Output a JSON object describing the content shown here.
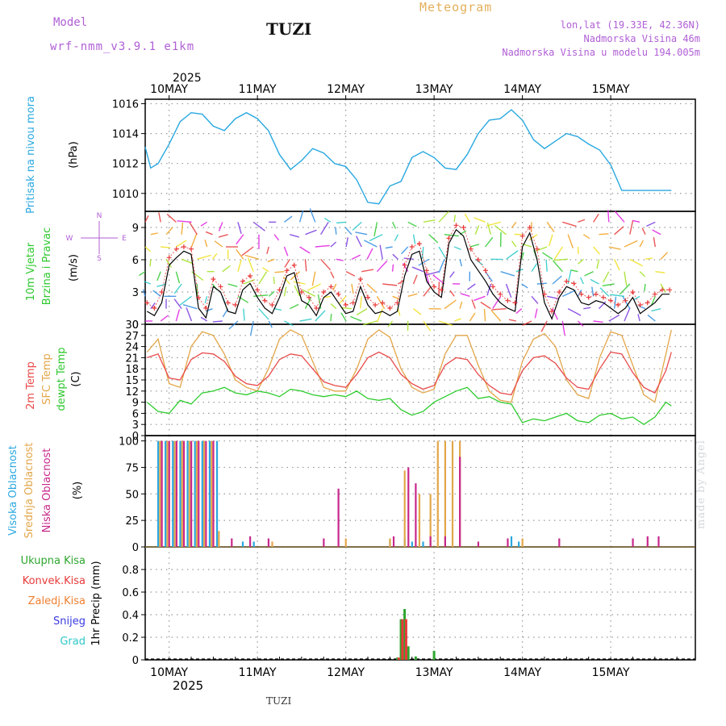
{
  "header": {
    "model_label": "Model",
    "model_name": "wrf-nmm_v3.9.1 e1km",
    "station": "TUZI",
    "title": "Meteogram",
    "lonlat": "lon,lat (19.33E, 42.36N)",
    "elevation": "Nadmorska Visina 46m",
    "elevation_model": "Nadmorska Visina u modelu 194.005m"
  },
  "footer": {
    "station": "TUZI",
    "watermark": "made by Angel"
  },
  "time_axis": {
    "year": "2025",
    "days": [
      "10MAY",
      "11MAY",
      "12MAY",
      "13MAY",
      "14MAY",
      "15MAY"
    ],
    "start_hour_offset": -6.5,
    "total_hours": 143
  },
  "colors": {
    "pressure": "#29a8e0",
    "wind_speed": "#000000",
    "wind_gust": "#e83a3a",
    "t2m": "#e84a4a",
    "tsfc": "#e3a64a",
    "dewpoint": "#2ecc2e",
    "cloud_high": "#29a8e0",
    "cloud_mid": "#e3a64a",
    "cloud_low": "#c8288c",
    "precip_total": "#2ea62e",
    "precip_conv": "#e83a3a",
    "precip_frozen": "#f08030",
    "snow": "#3a3ae0",
    "hail": "#2ec8c8",
    "label_purple": "#b05fd6"
  },
  "chart_data": [
    {
      "type": "line",
      "name": "pressure",
      "ylabel_title": "Pritisak na nivou mora",
      "ylabel_unit": "(hPa)",
      "ylim": [
        1008.8,
        1016.3
      ],
      "yticks": [
        "1010",
        "1012",
        "1014",
        "1016"
      ],
      "x_hours": [
        -6.5,
        -5,
        -3,
        0,
        3,
        6,
        9,
        12,
        15,
        18,
        21,
        24,
        27,
        30,
        33,
        36,
        39,
        42,
        45,
        48,
        51,
        54,
        57,
        60,
        63,
        66,
        69,
        72,
        75,
        78,
        81,
        84,
        87,
        90,
        93,
        96,
        99,
        102,
        105,
        108,
        111,
        114,
        117,
        120,
        123,
        126,
        129,
        132,
        135,
        136.5
      ],
      "values": [
        1013.1,
        1011.7,
        1012.0,
        1013.3,
        1014.8,
        1015.4,
        1015.3,
        1014.5,
        1014.2,
        1015.0,
        1015.4,
        1015.0,
        1014.2,
        1012.6,
        1011.6,
        1012.2,
        1013.0,
        1012.7,
        1012.0,
        1011.8,
        1010.9,
        1009.4,
        1009.3,
        1010.5,
        1010.8,
        1012.4,
        1012.8,
        1012.4,
        1011.7,
        1011.6,
        1012.6,
        1014.0,
        1014.9,
        1015.0,
        1015.6,
        1014.9,
        1013.6,
        1013.0,
        1013.5,
        1014.0,
        1013.8,
        1013.3,
        1012.9,
        1011.9,
        1010.2,
        1010.2,
        1010.2,
        1010.2,
        1010.2,
        1010.2
      ]
    },
    {
      "type": "line",
      "name": "wind",
      "ylabel_title_1": "10m Vjetar",
      "ylabel_title_2": "Brzina i Pravac",
      "ylabel_unit": "(m/s)",
      "compass": [
        "N",
        "S",
        "W",
        "E"
      ],
      "ylim": [
        0,
        10.5
      ],
      "yticks": [
        "0",
        "3",
        "6",
        "9"
      ],
      "x_hours": [
        -6,
        -4,
        -2,
        0,
        2,
        4,
        6,
        8,
        10,
        12,
        14,
        16,
        18,
        20,
        22,
        24,
        26,
        28,
        30,
        32,
        34,
        36,
        38,
        40,
        42,
        44,
        46,
        48,
        50,
        52,
        54,
        56,
        58,
        60,
        62,
        64,
        66,
        68,
        70,
        72,
        74,
        76,
        78,
        80,
        82,
        84,
        86,
        88,
        90,
        92,
        94,
        96,
        98,
        100,
        102,
        104,
        106,
        108,
        110,
        112,
        114,
        116,
        118,
        120,
        122,
        124,
        126,
        128,
        130,
        132,
        134,
        136
      ],
      "series": [
        {
          "values": [
            1.2,
            0.8,
            2.0,
            5.5,
            6.2,
            6.8,
            6.5,
            1.5,
            0.6,
            3.5,
            3.0,
            1.2,
            1.0,
            3.2,
            3.8,
            2.5,
            1.5,
            1.0,
            2.5,
            4.5,
            4.8,
            2.2,
            1.8,
            0.8,
            2.5,
            3.0,
            2.0,
            1.0,
            1.2,
            3.5,
            1.8,
            1.0,
            1.2,
            0.8,
            1.2,
            4.5,
            6.5,
            6.8,
            4.0,
            3.0,
            2.5,
            7.5,
            8.8,
            8.2,
            6.0,
            5.0,
            4.0,
            2.8,
            2.0,
            1.5,
            1.2,
            7.2,
            8.5,
            6.0,
            2.0,
            0.5,
            2.5,
            3.5,
            3.2,
            2.0,
            1.8,
            2.2,
            2.0,
            1.5,
            1.0,
            1.5,
            2.5,
            1.0,
            1.5,
            2.0,
            2.8,
            2.8
          ]
        },
        {
          "values": [
            2.0,
            1.5,
            3.0,
            6.2,
            7.0,
            7.2,
            7.0,
            2.5,
            1.5,
            4.2,
            3.5,
            2.0,
            1.8,
            4.0,
            4.5,
            3.2,
            2.2,
            1.8,
            3.2,
            5.0,
            5.5,
            3.0,
            2.5,
            1.5,
            3.0,
            3.5,
            2.8,
            1.8,
            2.0,
            4.2,
            2.5,
            1.8,
            2.0,
            1.5,
            2.0,
            5.5,
            7.2,
            7.5,
            5.0,
            3.5,
            3.2,
            8.0,
            9.2,
            9.0,
            7.0,
            6.0,
            5.0,
            3.5,
            2.8,
            2.2,
            2.0,
            8.2,
            9.0,
            7.0,
            2.8,
            1.2,
            3.0,
            4.0,
            3.8,
            2.8,
            2.5,
            2.8,
            2.5,
            2.2,
            1.8,
            2.2,
            3.0,
            1.8,
            2.0,
            2.8,
            3.2,
            3.2
          ]
        }
      ]
    },
    {
      "type": "line",
      "name": "temperature",
      "legend": [
        "2m Temp",
        "SFC Temp",
        "dewpt Temp"
      ],
      "ylabel_unit": "(C)",
      "ylim": [
        0,
        30
      ],
      "yticks": [
        "0",
        "3",
        "6",
        "9",
        "12",
        "15",
        "18",
        "21",
        "24",
        "27",
        "30"
      ],
      "x_hours": [
        -6,
        -3,
        0,
        3,
        6,
        9,
        12,
        15,
        18,
        21,
        24,
        27,
        30,
        33,
        36,
        39,
        42,
        45,
        48,
        51,
        54,
        57,
        60,
        63,
        66,
        69,
        72,
        75,
        78,
        81,
        84,
        87,
        90,
        93,
        96,
        99,
        102,
        105,
        108,
        111,
        114,
        117,
        120,
        123,
        126,
        129,
        132,
        135,
        136.5
      ],
      "series": [
        {
          "values": [
            21.0,
            22.0,
            15.5,
            15.0,
            20.5,
            22.3,
            22.0,
            20.0,
            16.0,
            14.0,
            13.5,
            16.0,
            20.5,
            22.0,
            21.5,
            18.0,
            14.5,
            13.5,
            13.0,
            16.5,
            21.0,
            22.5,
            21.0,
            16.5,
            14.0,
            12.5,
            13.5,
            19.0,
            21.0,
            20.5,
            16.5,
            13.5,
            11.5,
            11.0,
            17.5,
            21.0,
            21.5,
            19.5,
            15.5,
            13.0,
            12.5,
            18.0,
            22.5,
            22.0,
            17.0,
            13.0,
            11.5,
            17.5,
            22.5
          ]
        },
        {
          "values": [
            22.5,
            26.0,
            14.0,
            13.0,
            24.0,
            28.0,
            27.0,
            22.0,
            15.0,
            13.0,
            12.0,
            18.0,
            26.0,
            28.5,
            27.0,
            20.0,
            13.0,
            12.0,
            12.0,
            18.0,
            26.0,
            28.5,
            26.5,
            18.0,
            13.0,
            11.5,
            12.5,
            22.0,
            27.0,
            27.0,
            19.0,
            12.0,
            9.5,
            9.0,
            20.0,
            26.0,
            27.5,
            24.0,
            15.0,
            11.0,
            10.0,
            21.0,
            28.0,
            27.0,
            19.0,
            11.0,
            9.0,
            22.0,
            28.5
          ]
        },
        {
          "values": [
            9.0,
            6.5,
            6.0,
            9.5,
            8.5,
            11.5,
            12.0,
            13.0,
            11.5,
            11.0,
            12.0,
            11.5,
            10.5,
            12.5,
            12.0,
            11.0,
            10.5,
            11.0,
            10.5,
            12.0,
            10.0,
            9.5,
            10.0,
            7.0,
            5.5,
            6.5,
            9.0,
            10.5,
            12.0,
            13.0,
            10.0,
            10.5,
            9.0,
            8.5,
            3.5,
            4.5,
            4.0,
            5.0,
            6.0,
            4.0,
            3.5,
            5.5,
            6.0,
            4.5,
            5.0,
            3.0,
            5.0,
            9.0,
            8.0
          ]
        }
      ]
    },
    {
      "type": "bar",
      "name": "cloud",
      "legend": [
        "Visoka Oblacnost",
        "Srednja Oblacnost",
        "Niska Oblacnost"
      ],
      "ylabel_unit": "(%)",
      "ylim": [
        0,
        105
      ],
      "yticks": [
        "0",
        "25",
        "50",
        "75",
        "100"
      ],
      "series": [
        {
          "name": "Visoka Oblacnost",
          "x_hours": [
            -3,
            -1,
            1,
            3,
            5,
            7,
            9,
            11,
            13,
            20,
            23,
            60,
            64,
            66,
            69,
            71,
            93,
            95
          ],
          "values": [
            100,
            100,
            100,
            100,
            100,
            100,
            100,
            100,
            100,
            5,
            5,
            7,
            8,
            5,
            5,
            5,
            10,
            5
          ]
        },
        {
          "name": "Srednja Oblacnost",
          "x_hours": [
            -2.5,
            -0.5,
            1.5,
            3.5,
            5.5,
            7.5,
            9.5,
            11.5,
            13.5,
            28,
            48,
            60,
            64,
            68,
            71,
            73,
            75,
            77,
            79,
            96
          ],
          "values": [
            100,
            100,
            100,
            100,
            100,
            100,
            100,
            100,
            15,
            5,
            8,
            8,
            72,
            50,
            50,
            100,
            100,
            100,
            100,
            8
          ]
        },
        {
          "name": "Niska Oblacnost",
          "x_hours": [
            -2,
            0,
            2,
            4,
            6,
            8,
            10,
            12,
            17,
            22,
            27,
            42,
            46,
            61,
            65,
            67,
            71,
            75,
            79,
            84,
            92,
            106,
            126,
            130,
            133
          ],
          "values": [
            100,
            100,
            100,
            100,
            100,
            100,
            100,
            100,
            8,
            10,
            8,
            8,
            55,
            10,
            75,
            60,
            10,
            10,
            85,
            5,
            8,
            8,
            8,
            10,
            10
          ]
        }
      ]
    },
    {
      "type": "bar",
      "name": "precip",
      "legend": [
        "Ukupna Kisa",
        "Konvek.Kisa",
        "Zaledj.Kisa",
        "Snijeg",
        "Grad"
      ],
      "ylabel_unit": "1hr Precip (mm)",
      "ylim": [
        0,
        1.0
      ],
      "yticks": [
        "0",
        "0.2",
        "0.4",
        "0.6",
        "0.8"
      ],
      "series": [
        {
          "name": "Ukupna Kisa",
          "x_hours": [
            62,
            63,
            64,
            65,
            67,
            72
          ],
          "values": [
            0.02,
            0.36,
            0.45,
            0.12,
            0.03,
            0.08
          ]
        },
        {
          "name": "Konvek.Kisa",
          "x_hours": [
            62.4,
            63.4,
            64.4
          ],
          "values": [
            0.02,
            0.36,
            0.36
          ]
        }
      ]
    }
  ]
}
